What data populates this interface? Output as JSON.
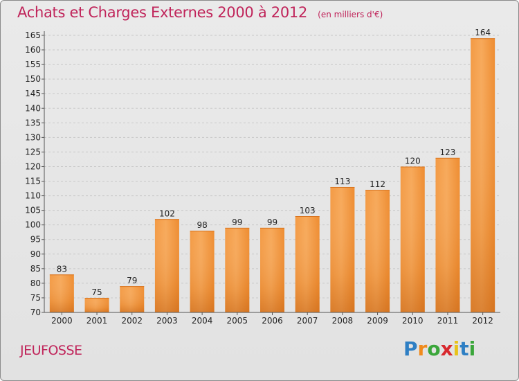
{
  "header": {
    "title": "Achats et Charges Externes 2000 à 2012",
    "subtitle": "(en milliers d'€)"
  },
  "footer": {
    "commune": "JEUFOSSE",
    "logo": "Proxiti"
  },
  "chart_data": {
    "type": "bar",
    "title": "Achats et Charges Externes 2000 à 2012",
    "subtitle": "(en milliers d'€)",
    "xlabel": "",
    "ylabel": "",
    "categories": [
      "2000",
      "2001",
      "2002",
      "2003",
      "2004",
      "2005",
      "2006",
      "2007",
      "2008",
      "2009",
      "2010",
      "2011",
      "2012"
    ],
    "values": [
      83,
      75,
      79,
      102,
      98,
      99,
      99,
      103,
      113,
      112,
      120,
      123,
      164
    ],
    "ylim": [
      70,
      165
    ],
    "yticks": [
      70,
      75,
      80,
      85,
      90,
      95,
      100,
      105,
      110,
      115,
      120,
      125,
      130,
      135,
      140,
      145,
      150,
      155,
      160,
      165
    ],
    "grid": "horizontal",
    "legend": "none",
    "colors": {
      "bar": "#f08a2c",
      "bar_light": "#f7aa5c",
      "bar_dark": "#d86e14",
      "title": "#c0245a"
    }
  }
}
